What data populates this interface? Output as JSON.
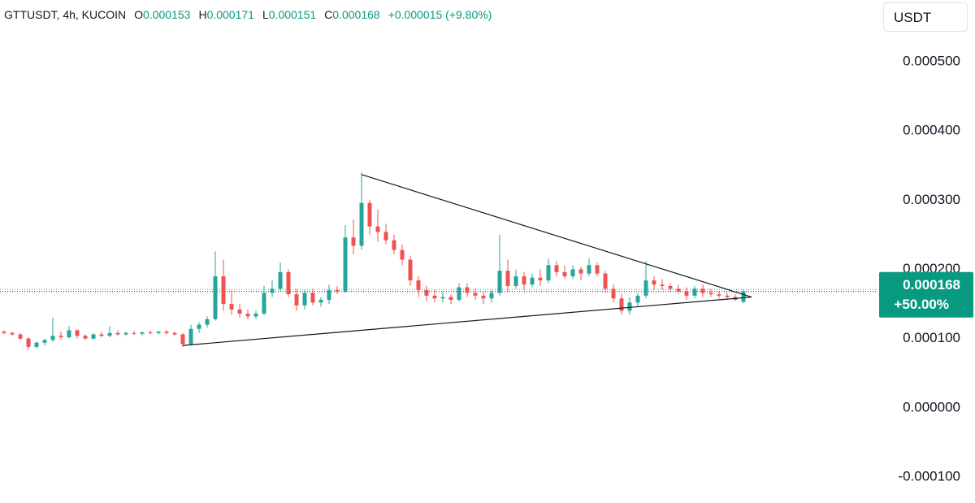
{
  "chart_data": {
    "type": "candlestick",
    "title": "GTTUSDT, 4h, KUCOIN",
    "legend_labels": [
      "O",
      "H",
      "L",
      "C"
    ],
    "legend_values": [
      0.000153,
      0.000171,
      0.000151,
      0.000168
    ],
    "change_label": "+0.000015 (+9.80%)",
    "currency": "USDT",
    "last_price": 0.000168,
    "last_change_label": "+50.00%",
    "up_color": "#26a69a",
    "down_color": "#ef5350",
    "grid": false,
    "ylim": [
      -0.0001376,
      0.0005892
    ],
    "yticks": [
      {
        "value": 0.0005,
        "label": "0.000500"
      },
      {
        "value": 0.0004,
        "label": "0.000400"
      },
      {
        "value": 0.0003,
        "label": "0.000300"
      },
      {
        "value": 0.0002,
        "label": "0.000200"
      },
      {
        "value": 0.0001,
        "label": "0.000100"
      },
      {
        "value": 0,
        "label": "0.000000"
      },
      {
        "value": -0.0001,
        "label": "-0.000100"
      }
    ],
    "open": [
      0.00011,
      0.000108,
      0.000106,
      0.0001,
      8.8e-05,
      9.4e-05,
      9.8e-05,
      0.000104,
      0.000102,
      0.000112,
      0.000104,
      0.0001,
      0.000106,
      0.000104,
      0.000108,
      0.000106,
      0.000108,
      0.000107,
      0.000109,
      0.000108,
      0.00011,
      0.000108,
      0.000106,
      9.2e-05,
      0.000114,
      0.00012,
      0.000128,
      0.00019,
      0.00015,
      0.000142,
      0.000136,
      0.000132,
      0.000136,
      0.000166,
      0.000172,
      0.000196,
      0.000164,
      0.000148,
      0.000166,
      0.000152,
      0.000156,
      0.00017,
      0.000168,
      0.000246,
      0.000234,
      0.000296,
      0.000262,
      0.000254,
      0.000242,
      0.000228,
      0.000214,
      0.000184,
      0.00017,
      0.000162,
      0.000158,
      0.00016,
      0.000156,
      0.000174,
      0.000166,
      0.000162,
      0.000158,
      0.000166,
      0.000198,
      0.000176,
      0.00019,
      0.000178,
      0.000188,
      0.000184,
      0.000206,
      0.000196,
      0.00019,
      0.0002,
      0.000194,
      0.000206,
      0.000194,
      0.000172,
      0.000158,
      0.00014,
      0.000152,
      0.000162,
      0.000184,
      0.000178,
      0.000176,
      0.000172,
      0.000168,
      0.000162,
      0.000172,
      0.000166,
      0.000164,
      0.000162,
      0.00016,
      0.000153
    ],
    "high": [
      0.000112,
      0.00011,
      0.000108,
      0.000102,
      9.6e-05,
      0.0001,
      0.00013,
      0.00011,
      0.000118,
      0.000114,
      0.000106,
      0.000108,
      0.00011,
      0.000118,
      0.000112,
      0.00011,
      0.000111,
      0.00011,
      0.000112,
      0.000111,
      0.000112,
      0.00011,
      0.000108,
      0.00012,
      0.000124,
      0.000132,
      0.000226,
      0.000214,
      0.00017,
      0.00015,
      0.000142,
      0.00014,
      0.000176,
      0.000184,
      0.00021,
      0.0002,
      0.000172,
      0.00017,
      0.000172,
      0.00016,
      0.000178,
      0.000176,
      0.000264,
      0.000272,
      0.00034,
      0.0003,
      0.000286,
      0.000266,
      0.00025,
      0.000236,
      0.00022,
      0.00019,
      0.000176,
      0.00017,
      0.000168,
      0.000164,
      0.00018,
      0.00018,
      0.000172,
      0.000168,
      0.00017,
      0.00025,
      0.000214,
      0.0002,
      0.000196,
      0.000194,
      0.0002,
      0.000216,
      0.000212,
      0.000206,
      0.000206,
      0.000204,
      0.000216,
      0.00021,
      0.000198,
      0.000178,
      0.000164,
      0.00016,
      0.000166,
      0.000212,
      0.00019,
      0.000186,
      0.00018,
      0.000178,
      0.000174,
      0.000176,
      0.000178,
      0.000172,
      0.000168,
      0.000166,
      0.000164,
      0.000171
    ],
    "low": [
      0.000106,
      0.000104,
      9.8e-05,
      8.4e-05,
      8.6e-05,
      9e-05,
      9.5e-05,
      9.8e-05,
      0.0001,
      0.0001,
      9.8e-05,
      9.8e-05,
      0.000102,
      0.000102,
      0.000104,
      0.000104,
      0.000105,
      0.000104,
      0.000106,
      0.000106,
      0.000106,
      0.000104,
      8.8e-05,
      9e-05,
      0.000108,
      0.000116,
      0.000126,
      0.00014,
      0.000134,
      0.00013,
      0.000128,
      0.000128,
      0.000134,
      0.00016,
      0.000168,
      0.00016,
      0.00014,
      0.000142,
      0.000148,
      0.000146,
      0.00015,
      0.000164,
      0.000166,
      0.000222,
      0.000228,
      0.00025,
      0.00024,
      0.000236,
      0.000222,
      0.000206,
      0.000176,
      0.00016,
      0.000154,
      0.000152,
      0.000152,
      0.00015,
      0.000154,
      0.00016,
      0.000156,
      0.00015,
      0.000152,
      0.000162,
      0.000168,
      0.000172,
      0.00017,
      0.000174,
      0.000176,
      0.00018,
      0.00019,
      0.000186,
      0.000186,
      0.000184,
      0.00019,
      0.00019,
      0.000166,
      0.000152,
      0.000134,
      0.000134,
      0.000146,
      0.000158,
      0.00017,
      0.00017,
      0.000168,
      0.000164,
      0.000156,
      0.000158,
      0.00016,
      0.00016,
      0.000158,
      0.000156,
      0.000154,
      0.000151
    ],
    "close": [
      0.000108,
      0.000106,
      0.0001,
      8.8e-05,
      9.4e-05,
      9.8e-05,
      0.000104,
      0.000102,
      0.000112,
      0.000104,
      0.0001,
      0.000106,
      0.000104,
      0.000108,
      0.000106,
      0.000108,
      0.000107,
      0.000109,
      0.000108,
      0.00011,
      0.000108,
      0.000106,
      9.2e-05,
      0.000114,
      0.00012,
      0.000128,
      0.00019,
      0.00015,
      0.000142,
      0.000136,
      0.000132,
      0.000136,
      0.000166,
      0.000172,
      0.000196,
      0.000164,
      0.000148,
      0.000166,
      0.000152,
      0.000156,
      0.00017,
      0.000168,
      0.000246,
      0.000234,
      0.000296,
      0.000262,
      0.000254,
      0.000242,
      0.000228,
      0.000214,
      0.000184,
      0.00017,
      0.000162,
      0.000158,
      0.00016,
      0.000156,
      0.000174,
      0.000166,
      0.000162,
      0.000158,
      0.000166,
      0.000198,
      0.000176,
      0.00019,
      0.000178,
      0.000188,
      0.000184,
      0.000206,
      0.000196,
      0.00019,
      0.0002,
      0.000194,
      0.000206,
      0.000194,
      0.000172,
      0.000158,
      0.00014,
      0.000152,
      0.000162,
      0.000184,
      0.000178,
      0.000176,
      0.000172,
      0.000168,
      0.000162,
      0.000172,
      0.000166,
      0.000164,
      0.000162,
      0.00016,
      0.000156,
      0.000168
    ],
    "trend_lines": [
      {
        "x": [
          44,
          92
        ],
        "y": [
          0.000337,
          0.00016
        ]
      },
      {
        "x": [
          22,
          92
        ],
        "y": [
          9e-05,
          0.00016
        ]
      }
    ]
  }
}
